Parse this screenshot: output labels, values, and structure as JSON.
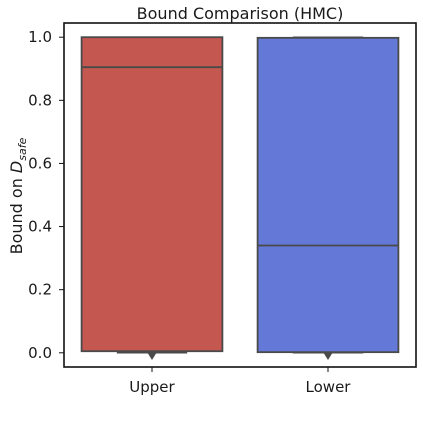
{
  "chart_data": {
    "type": "box",
    "title": "Bound Comparison (HMC)",
    "ylabel_prefix": "Bound on ",
    "ylabel_symbol": "D",
    "ylabel_subscript": "safe",
    "categories": [
      "Upper",
      "Lower"
    ],
    "series": [
      {
        "q1": 0.005,
        "median": 0.905,
        "q3": 1.0,
        "whisker_low": 0.0,
        "whisker_high": 1.0,
        "outliers": [
          -0.01
        ],
        "color": "#c4574f"
      },
      {
        "q1": 0.002,
        "median": 0.34,
        "q3": 0.998,
        "whisker_low": 0.0,
        "whisker_high": 1.0,
        "outliers": [
          -0.01
        ],
        "color": "#6478d8"
      }
    ],
    "ylim": [
      -0.045,
      1.045
    ],
    "yticks": [
      "0.0",
      "0.2",
      "0.4",
      "0.6",
      "0.8",
      "1.0"
    ],
    "grid": false,
    "edge_color": "#4a4a4a"
  }
}
